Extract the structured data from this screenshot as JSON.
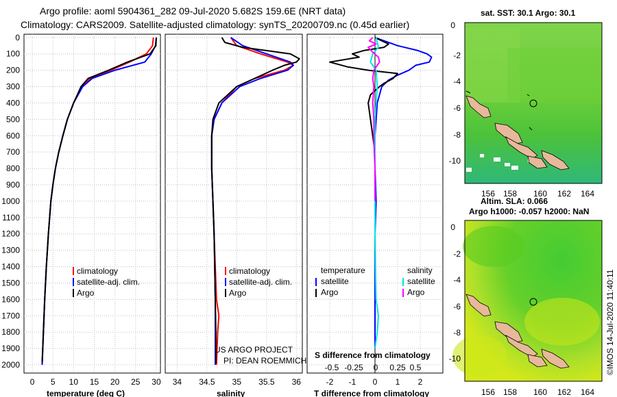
{
  "header": {
    "line1": "Argo profile: aoml 5904361_282 09-Jul-2020 5.682S 159.6E (NRT data)",
    "line2": "Climatology: CARS2009. Satellite-adjusted climatology: synTS_20200709.nc (0.45d earlier)"
  },
  "colors": {
    "climatology": "#ff0000",
    "satellite": "#0000ff",
    "argo": "#000000",
    "sat_salinity": "#00e5e5",
    "argo_salinity": "#ff00ff",
    "land": "#e8b89a",
    "ocean_green": "#33cc33"
  },
  "depth_axis": {
    "ticks": [
      "0",
      "100",
      "200",
      "300",
      "400",
      "500",
      "600",
      "700",
      "800",
      "900",
      "1000",
      "1100",
      "1200",
      "1300",
      "1400",
      "1500",
      "1600",
      "1700",
      "1800",
      "1900",
      "2000"
    ]
  },
  "chart_data": [
    {
      "type": "line",
      "name": "temperature-profile",
      "xlabel": "temperature (deg C)",
      "xlim": [
        -2,
        31
      ],
      "ylim": [
        2050,
        -20
      ],
      "xticks": [
        "0",
        "5",
        "10",
        "15",
        "20",
        "25",
        "30"
      ],
      "legend": {
        "climatology": "climatology",
        "satellite": "satellite-adj. clim.",
        "argo": "Argo"
      },
      "series": [
        {
          "name": "climatology",
          "color": "#ff0000",
          "depth": [
            0,
            50,
            100,
            150,
            200,
            250,
            300,
            400,
            500,
            600,
            700,
            800,
            900,
            1000,
            1200,
            1400,
            1600,
            1800,
            2000
          ],
          "values": [
            29.3,
            29.1,
            27.6,
            23.5,
            19.0,
            14.0,
            12.0,
            10.0,
            8.5,
            7.4,
            6.4,
            5.6,
            5.0,
            4.5,
            3.9,
            3.4,
            3.0,
            2.7,
            2.4
          ]
        },
        {
          "name": "satellite-adj. clim.",
          "color": "#0000ff",
          "depth": [
            0,
            50,
            100,
            150,
            200,
            250,
            300,
            400,
            500,
            600,
            700,
            800,
            900,
            1000,
            1200,
            1400,
            1600,
            1800,
            2000
          ],
          "values": [
            30.0,
            29.8,
            28.8,
            27.2,
            20.0,
            14.5,
            12.2,
            10.0,
            8.5,
            7.4,
            6.4,
            5.6,
            5.0,
            4.5,
            3.9,
            3.4,
            3.0,
            2.7,
            2.4
          ]
        },
        {
          "name": "Argo",
          "color": "#000000",
          "depth": [
            0,
            50,
            100,
            150,
            200,
            250,
            300,
            400,
            500,
            600,
            700,
            800,
            900,
            1000,
            1200,
            1400,
            1600,
            1800,
            1980
          ],
          "values": [
            30.0,
            29.9,
            28.5,
            23.0,
            18.5,
            13.5,
            11.8,
            10.0,
            8.5,
            7.4,
            6.4,
            5.6,
            5.0,
            4.5,
            3.9,
            3.4,
            3.0,
            2.7,
            2.4
          ]
        }
      ]
    },
    {
      "type": "line",
      "name": "salinity-profile",
      "xlabel": "salinity",
      "xlim": [
        33.8,
        36.1
      ],
      "ylim": [
        2050,
        -20
      ],
      "xticks": [
        "34",
        "34.5",
        "35",
        "35.5",
        "36"
      ],
      "legend": {
        "climatology": "climatology",
        "satellite": "satellite-adj. clim.",
        "argo": "Argo"
      },
      "annotation": [
        "US ARGO PROJECT",
        "PI: DEAN ROEMMICH"
      ],
      "series": [
        {
          "name": "climatology",
          "color": "#ff0000",
          "depth": [
            0,
            50,
            100,
            150,
            170,
            200,
            250,
            300,
            400,
            500,
            600,
            800,
            1000,
            1200,
            1400,
            1600,
            1700,
            1800,
            2000
          ],
          "values": [
            34.9,
            35.0,
            35.4,
            35.85,
            35.95,
            35.8,
            35.3,
            35.0,
            34.75,
            34.62,
            34.58,
            34.58,
            34.6,
            34.62,
            34.64,
            34.66,
            34.7,
            34.68,
            34.66
          ]
        },
        {
          "name": "satellite-adj. clim.",
          "color": "#0000ff",
          "depth": [
            0,
            50,
            100,
            150,
            170,
            200,
            250,
            300,
            400,
            500,
            600,
            800,
            1000,
            1200,
            1400,
            1600,
            1700,
            1800,
            2000
          ],
          "values": [
            34.9,
            35.1,
            35.5,
            35.9,
            35.95,
            35.85,
            35.4,
            35.05,
            34.75,
            34.62,
            34.58,
            34.58,
            34.6,
            34.62,
            34.63,
            34.64,
            34.64,
            34.64,
            34.64
          ]
        },
        {
          "name": "Argo",
          "color": "#000000",
          "depth": [
            0,
            30,
            60,
            80,
            100,
            130,
            150,
            170,
            200,
            250,
            300,
            400,
            500,
            600,
            800,
            1000,
            1200,
            1400,
            1600,
            1800,
            1990
          ],
          "values": [
            34.75,
            34.8,
            35.1,
            35.5,
            35.9,
            36.05,
            36.0,
            35.8,
            35.6,
            35.3,
            35.0,
            34.7,
            34.6,
            34.58,
            34.58,
            34.6,
            34.62,
            34.63,
            34.64,
            34.65,
            34.65
          ]
        }
      ]
    },
    {
      "type": "line",
      "name": "difference-profile",
      "xlabel": "T difference from climatology",
      "xlim": [
        -3,
        3
      ],
      "ylim": [
        2050,
        -20
      ],
      "xticks": [
        "-2",
        "-1",
        "0",
        "1",
        "2"
      ],
      "xlabel2": "S difference from climatology",
      "xticks2": [
        "-0.5",
        "-0.25",
        "0",
        "0.25",
        "0.5"
      ],
      "legend": {
        "temperature": "temperature",
        "salinity": "salinity",
        "satellite": "satellite",
        "argo": "Argo"
      },
      "series": [
        {
          "name": "temperature satellite",
          "color": "#0000ff",
          "depth": [
            0,
            20,
            50,
            80,
            100,
            120,
            150,
            170,
            200,
            230,
            260,
            300,
            400,
            600,
            800,
            1000,
            1200,
            1400,
            1600,
            1800,
            1900
          ],
          "values": [
            0,
            0.4,
            1.0,
            1.9,
            2.3,
            2.5,
            2.4,
            1.8,
            1.5,
            1.0,
            0.6,
            0.3,
            0.1,
            0,
            0,
            0.05,
            0,
            0,
            0,
            0,
            0
          ]
        },
        {
          "name": "temperature Argo",
          "color": "#000000",
          "depth": [
            0,
            20,
            40,
            60,
            80,
            100,
            120,
            150,
            180,
            200,
            220,
            250,
            280,
            300,
            350,
            400,
            500,
            600,
            700,
            800,
            900,
            1000
          ],
          "values": [
            0,
            0.3,
            0.6,
            0.4,
            -0.5,
            -1.0,
            -0.7,
            -2.0,
            -1.2,
            -0.3,
            1.0,
            0.8,
            0.4,
            0.2,
            -0.2,
            -0.3,
            -0.2,
            -0.1,
            0,
            0,
            0,
            0
          ]
        },
        {
          "name": "salinity satellite",
          "color": "#00e5e5",
          "depth": [
            0,
            30,
            60,
            100,
            150,
            200,
            300,
            500,
            800,
            1000,
            1200,
            1400,
            1600,
            1700,
            1800,
            1900
          ],
          "values": [
            0.05,
            0.1,
            0.15,
            -0.1,
            -0.2,
            0.05,
            0.1,
            0,
            0,
            0,
            0,
            0.02,
            0.05,
            0.15,
            0.1,
            0
          ]
        },
        {
          "name": "salinity Argo",
          "color": "#ff00ff",
          "depth": [
            0,
            20,
            40,
            60,
            90,
            120,
            150,
            200,
            250,
            300,
            400,
            500,
            600,
            700,
            800,
            900,
            1000
          ],
          "values": [
            -0.1,
            -0.25,
            0.05,
            -0.3,
            -0.1,
            0.15,
            0.2,
            -0.05,
            -0.1,
            -0.05,
            -0.1,
            -0.05,
            -0.05,
            -0.03,
            0,
            0,
            0
          ]
        }
      ]
    },
    {
      "type": "heatmap",
      "name": "sst-map",
      "title": "sat. SST: 30.1 Argo: 30.1",
      "xticks": [
        "156",
        "158",
        "160",
        "162",
        "164"
      ],
      "yticks": [
        "0",
        "-2",
        "-4",
        "-6",
        "-8",
        "-10"
      ]
    },
    {
      "type": "heatmap",
      "name": "sla-map",
      "title": "Altim. SLA: 0.066",
      "subtitle": "Argo h1000: -0.057 h2000: NaN",
      "xticks": [
        "156",
        "158",
        "160",
        "162",
        "164"
      ],
      "yticks": [
        "0",
        "-2",
        "-4",
        "-6",
        "-8",
        "-10"
      ]
    }
  ],
  "credit": "©IMOS 14-Jul-2020 11:40:11"
}
